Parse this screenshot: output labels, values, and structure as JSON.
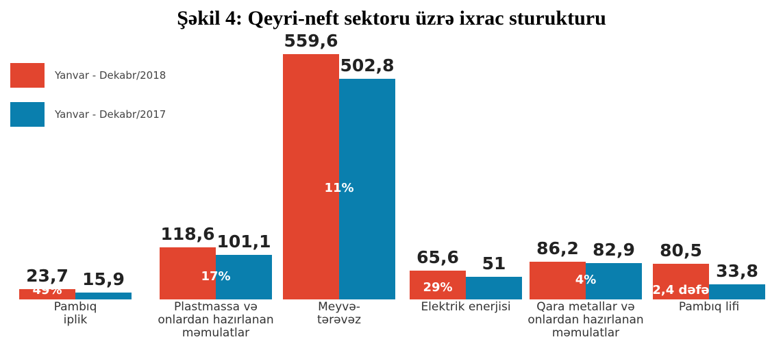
{
  "chart_data": {
    "type": "bar",
    "title": "Şəkil 4: Qeyri-neft sektoru üzrə ixrac sturukturu",
    "categories": [
      "Pambıq\niplik",
      "Plastmassa və\nonlardan hazırlanan\nməmulatlar",
      "Meyvə-\ntərəvəz",
      "Elektrik enerjisi",
      "Qara metallar və\nonlardan hazırlanan\nməmulatlar",
      "Pambıq lifi"
    ],
    "series": [
      {
        "name": "Yanvar - Dekabr/2018",
        "color": "#e2452f",
        "values": [
          23.7,
          118.6,
          559.6,
          65.6,
          86.2,
          80.5
        ],
        "value_labels": [
          "23,7",
          "118,6",
          "559,6",
          "65,6",
          "86,2",
          "80,5"
        ]
      },
      {
        "name": "Yanvar - Dekabr/2017",
        "color": "#0a7fae",
        "values": [
          15.9,
          101.1,
          502.8,
          51,
          82.9,
          33.8
        ],
        "value_labels": [
          "15,9",
          "101,1",
          "502,8",
          "51",
          "82,9",
          "33,8"
        ]
      }
    ],
    "growth_labels": [
      "49%",
      "17%",
      "11%",
      "29%",
      "4%",
      "2,4 dəfə"
    ]
  }
}
